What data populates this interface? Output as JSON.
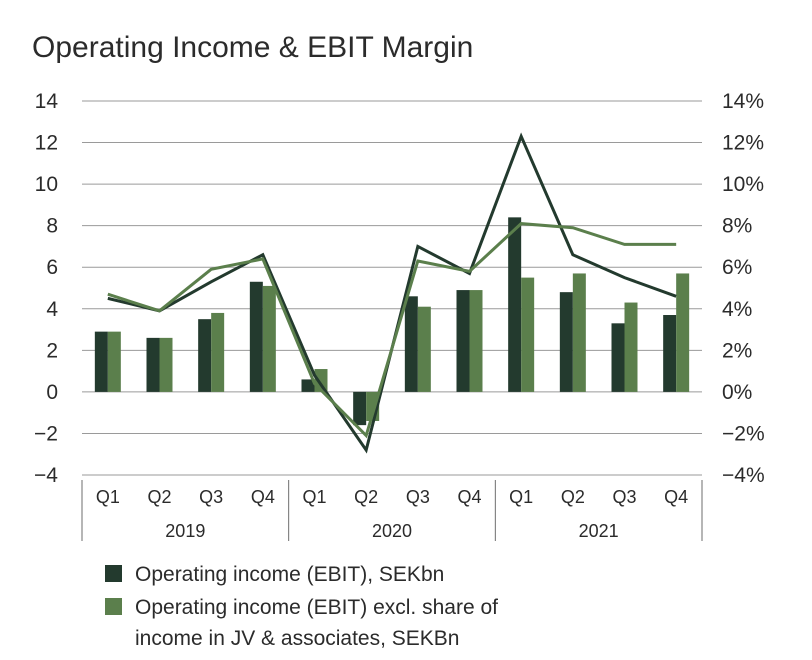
{
  "chart_data": {
    "type": "bar",
    "title": "Operating Income & EBIT Margin",
    "years": [
      "2019",
      "2020",
      "2021"
    ],
    "categories": [
      "Q1",
      "Q2",
      "Q3",
      "Q4",
      "Q1",
      "Q2",
      "Q3",
      "Q4",
      "Q1",
      "Q2",
      "Q3",
      "Q4"
    ],
    "ylim": [
      -4,
      14
    ],
    "y2lim": [
      -4,
      14
    ],
    "yticks": [
      "14",
      "12",
      "10",
      "8",
      "6",
      "4",
      "2",
      "0",
      "−2",
      "−4"
    ],
    "y2ticks": [
      "14%",
      "12%",
      "10%",
      "8%",
      "6%",
      "4%",
      "2%",
      "0%",
      "−2%",
      "−4%"
    ],
    "grid": true,
    "series": [
      {
        "name": "Operating income (EBIT), SEKbn",
        "type": "bar",
        "axis": "left",
        "color": "#233a2e",
        "values": [
          2.9,
          2.6,
          3.5,
          5.3,
          0.6,
          -1.6,
          4.6,
          4.9,
          8.4,
          4.8,
          3.3,
          3.7
        ]
      },
      {
        "name": "Operating income (EBIT) excl. share of income in JV & associates, SEKBn",
        "type": "bar",
        "axis": "left",
        "color": "#5b7f4c",
        "values": [
          2.9,
          2.6,
          3.8,
          5.1,
          1.1,
          -1.4,
          4.1,
          4.9,
          5.5,
          5.7,
          4.3,
          5.7
        ]
      },
      {
        "type": "line",
        "axis": "right",
        "color": "#233a2e",
        "values": [
          4.5,
          3.9,
          5.3,
          6.6,
          0.8,
          -2.8,
          7.0,
          5.7,
          12.3,
          6.6,
          5.5,
          4.6
        ]
      },
      {
        "type": "line",
        "axis": "right",
        "color": "#5b7f4c",
        "values": [
          4.7,
          3.9,
          5.9,
          6.4,
          0.4,
          -2.1,
          6.3,
          5.8,
          8.1,
          7.9,
          7.1,
          7.1
        ]
      }
    ],
    "legend": {
      "placement": "bottom-left",
      "items": [
        {
          "lines": [
            "Operating income (EBIT), SEKbn"
          ],
          "color": "#233a2e"
        },
        {
          "lines": [
            "Operating income (EBIT) excl. share of",
            "income in JV & associates, SEKBn"
          ],
          "color": "#5b7f4c"
        }
      ]
    }
  }
}
